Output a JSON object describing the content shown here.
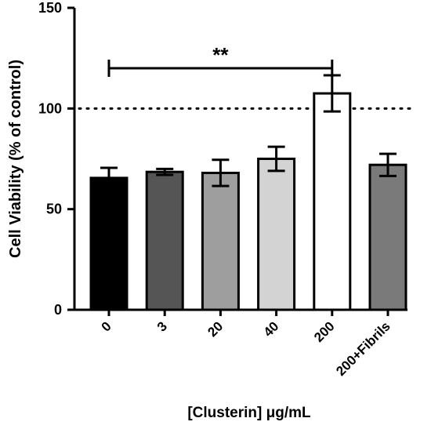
{
  "chart_data": {
    "type": "bar",
    "categories": [
      "0",
      "3",
      "20",
      "40",
      "200",
      "200+Fibrils"
    ],
    "values": [
      65.5,
      68.5,
      68,
      75,
      107.5,
      72
    ],
    "errors": [
      5,
      1.5,
      6.5,
      6,
      9,
      5.5
    ],
    "bar_colors": [
      "#000000",
      "#555555",
      "#9e9e9e",
      "#d3d3d3",
      "#ffffff",
      "#7a7a7a"
    ],
    "xlabel": "[Clusterin] μg/mL",
    "ylabel": "Cell Viability (% of control)",
    "ylim": [
      0,
      150
    ],
    "yticks": [
      "0",
      "50",
      "100",
      "150"
    ],
    "reference_line": {
      "y": 100,
      "style": "dotted"
    },
    "significance": {
      "from": "0",
      "to": "200",
      "label": "**",
      "y": 120
    },
    "grid": false
  }
}
